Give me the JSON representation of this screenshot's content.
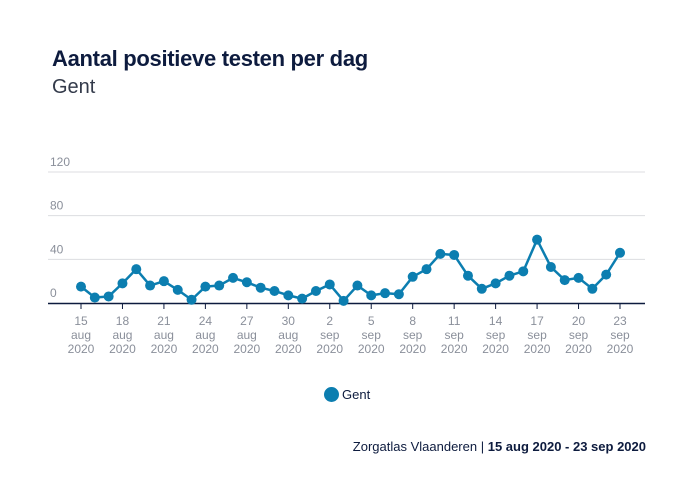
{
  "chart_data": {
    "type": "line",
    "title": "Aantal positieve testen per dag",
    "subtitle": "Gent",
    "xlabel": "",
    "ylabel": "",
    "ylim": [
      0,
      120
    ],
    "yticks": [
      0,
      40,
      80,
      120
    ],
    "grid": true,
    "legend_position": "bottom-center",
    "x": [
      "15 aug 2020",
      "16 aug 2020",
      "17 aug 2020",
      "18 aug 2020",
      "19 aug 2020",
      "20 aug 2020",
      "21 aug 2020",
      "22 aug 2020",
      "23 aug 2020",
      "24 aug 2020",
      "25 aug 2020",
      "26 aug 2020",
      "27 aug 2020",
      "28 aug 2020",
      "29 aug 2020",
      "30 aug 2020",
      "31 aug 2020",
      "1 sep 2020",
      "2 sep 2020",
      "3 sep 2020",
      "4 sep 2020",
      "5 sep 2020",
      "6 sep 2020",
      "7 sep 2020",
      "8 sep 2020",
      "9 sep 2020",
      "10 sep 2020",
      "11 sep 2020",
      "12 sep 2020",
      "13 sep 2020",
      "14 sep 2020",
      "15 sep 2020",
      "16 sep 2020",
      "17 sep 2020",
      "18 sep 2020",
      "19 sep 2020",
      "20 sep 2020",
      "21 sep 2020",
      "22 sep 2020",
      "23 sep 2020"
    ],
    "xtick_every": 3,
    "xticks": [
      {
        "index": 0,
        "day": "15",
        "month": "aug",
        "year": "2020"
      },
      {
        "index": 3,
        "day": "18",
        "month": "aug",
        "year": "2020"
      },
      {
        "index": 6,
        "day": "21",
        "month": "aug",
        "year": "2020"
      },
      {
        "index": 9,
        "day": "24",
        "month": "aug",
        "year": "2020"
      },
      {
        "index": 12,
        "day": "27",
        "month": "aug",
        "year": "2020"
      },
      {
        "index": 15,
        "day": "30",
        "month": "aug",
        "year": "2020"
      },
      {
        "index": 18,
        "day": "2",
        "month": "sep",
        "year": "2020"
      },
      {
        "index": 21,
        "day": "5",
        "month": "sep",
        "year": "2020"
      },
      {
        "index": 24,
        "day": "8",
        "month": "sep",
        "year": "2020"
      },
      {
        "index": 27,
        "day": "11",
        "month": "sep",
        "year": "2020"
      },
      {
        "index": 30,
        "day": "14",
        "month": "sep",
        "year": "2020"
      },
      {
        "index": 33,
        "day": "17",
        "month": "sep",
        "year": "2020"
      },
      {
        "index": 36,
        "day": "20",
        "month": "sep",
        "year": "2020"
      },
      {
        "index": 39,
        "day": "23",
        "month": "sep",
        "year": "2020"
      }
    ],
    "series": [
      {
        "name": "Gent",
        "color": "#0c7eb0",
        "values": [
          15,
          5,
          6,
          18,
          31,
          16,
          20,
          12,
          3,
          15,
          16,
          23,
          19,
          14,
          11,
          7,
          4,
          11,
          17,
          2,
          16,
          7,
          9,
          8,
          24,
          31,
          45,
          44,
          25,
          13,
          18,
          25,
          29,
          58,
          33,
          21,
          23,
          13,
          26,
          46
        ]
      }
    ]
  },
  "colors": {
    "series": "#0c7eb0",
    "grid": "#dcdde0",
    "axis": "#0d1b3e",
    "tick_text": "#8a8f9a",
    "title": "#0d1b3e"
  },
  "legend": {
    "label": "Gent"
  },
  "footer": {
    "source": "Zorgatlas Vlaanderen",
    "separator": " | ",
    "range": "15 aug 2020 - 23 sep 2020"
  }
}
